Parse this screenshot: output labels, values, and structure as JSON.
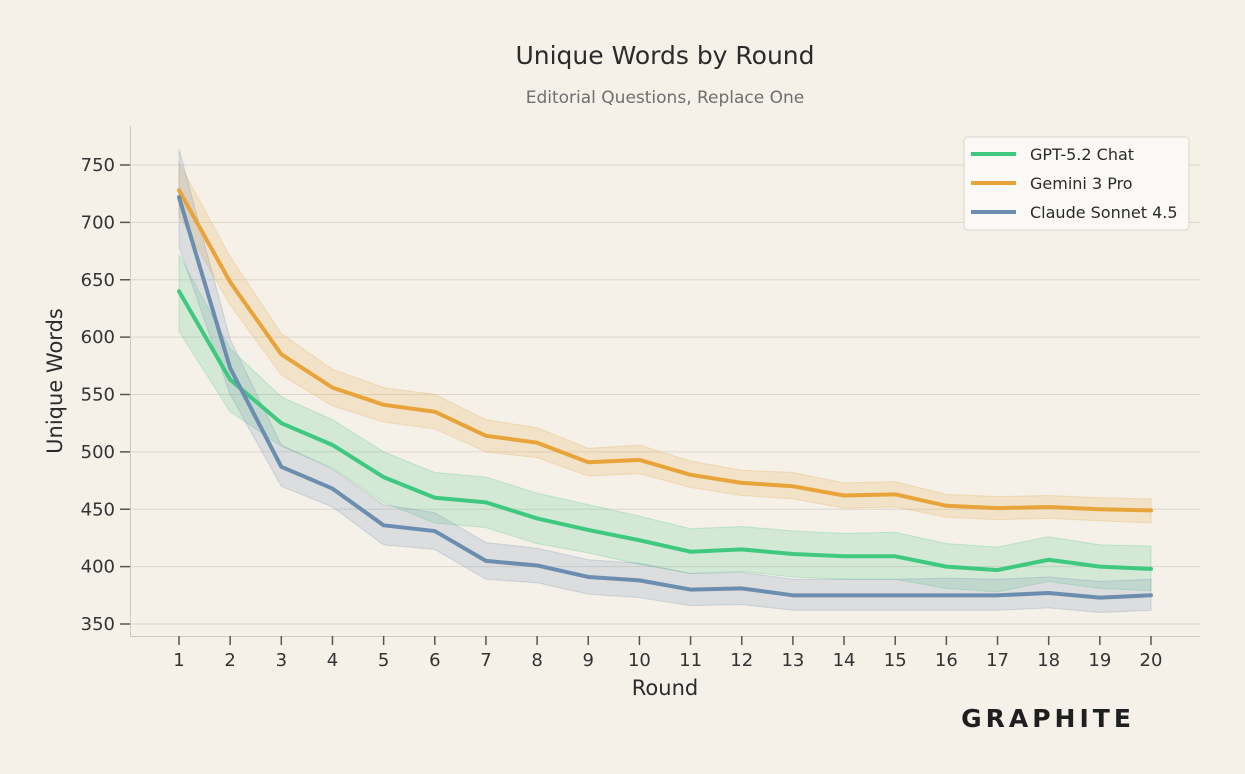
{
  "chart_data": {
    "type": "line",
    "title": "Unique Words by Round",
    "subtitle": "Editorial Questions, Replace One",
    "xlabel": "Round",
    "ylabel": "Unique Words",
    "x": [
      1,
      2,
      3,
      4,
      5,
      6,
      7,
      8,
      9,
      10,
      11,
      12,
      13,
      14,
      15,
      16,
      17,
      18,
      19,
      20
    ],
    "xlim": [
      1,
      20
    ],
    "ylim": [
      350,
      750
    ],
    "yticks": [
      350,
      400,
      450,
      500,
      550,
      600,
      650,
      700,
      750
    ],
    "grid": "horizontal",
    "legend_position": "top-right",
    "series": [
      {
        "name": "GPT-5.2 Chat",
        "color": "#3fc97f",
        "values": [
          640,
          563,
          525,
          506,
          478,
          460,
          456,
          442,
          432,
          423,
          413,
          415,
          411,
          409,
          409,
          400,
          397,
          406,
          400,
          398
        ],
        "lower": [
          605,
          535,
          505,
          486,
          456,
          438,
          434,
          420,
          412,
          402,
          394,
          396,
          391,
          389,
          389,
          381,
          378,
          387,
          381,
          379
        ],
        "upper": [
          672,
          590,
          548,
          528,
          500,
          482,
          478,
          464,
          454,
          444,
          433,
          435,
          431,
          429,
          430,
          420,
          417,
          426,
          419,
          418
        ]
      },
      {
        "name": "Gemini 3 Pro",
        "color": "#e8a43a",
        "values": [
          728,
          648,
          585,
          556,
          541,
          535,
          514,
          508,
          491,
          493,
          480,
          473,
          470,
          462,
          463,
          453,
          451,
          452,
          450,
          449
        ],
        "lower": [
          706,
          628,
          567,
          540,
          526,
          520,
          500,
          495,
          479,
          481,
          469,
          462,
          459,
          451,
          452,
          443,
          441,
          442,
          440,
          438
        ],
        "upper": [
          752,
          670,
          603,
          572,
          556,
          550,
          528,
          521,
          503,
          506,
          492,
          484,
          482,
          473,
          474,
          463,
          461,
          462,
          460,
          459
        ]
      },
      {
        "name": "Claude Sonnet 4.5",
        "color": "#6b8db0",
        "values": [
          722,
          573,
          487,
          468,
          436,
          431,
          405,
          401,
          391,
          388,
          380,
          381,
          375,
          375,
          375,
          375,
          375,
          377,
          373,
          375
        ],
        "lower": [
          679,
          550,
          470,
          452,
          419,
          415,
          389,
          386,
          376,
          373,
          366,
          367,
          362,
          362,
          362,
          362,
          362,
          364,
          360,
          362
        ],
        "upper": [
          764,
          598,
          506,
          485,
          454,
          447,
          421,
          416,
          406,
          403,
          394,
          395,
          389,
          389,
          389,
          390,
          389,
          391,
          387,
          389
        ]
      }
    ]
  },
  "brand": {
    "text": "GRAPHITE",
    "color": "#1f1f1f"
  }
}
